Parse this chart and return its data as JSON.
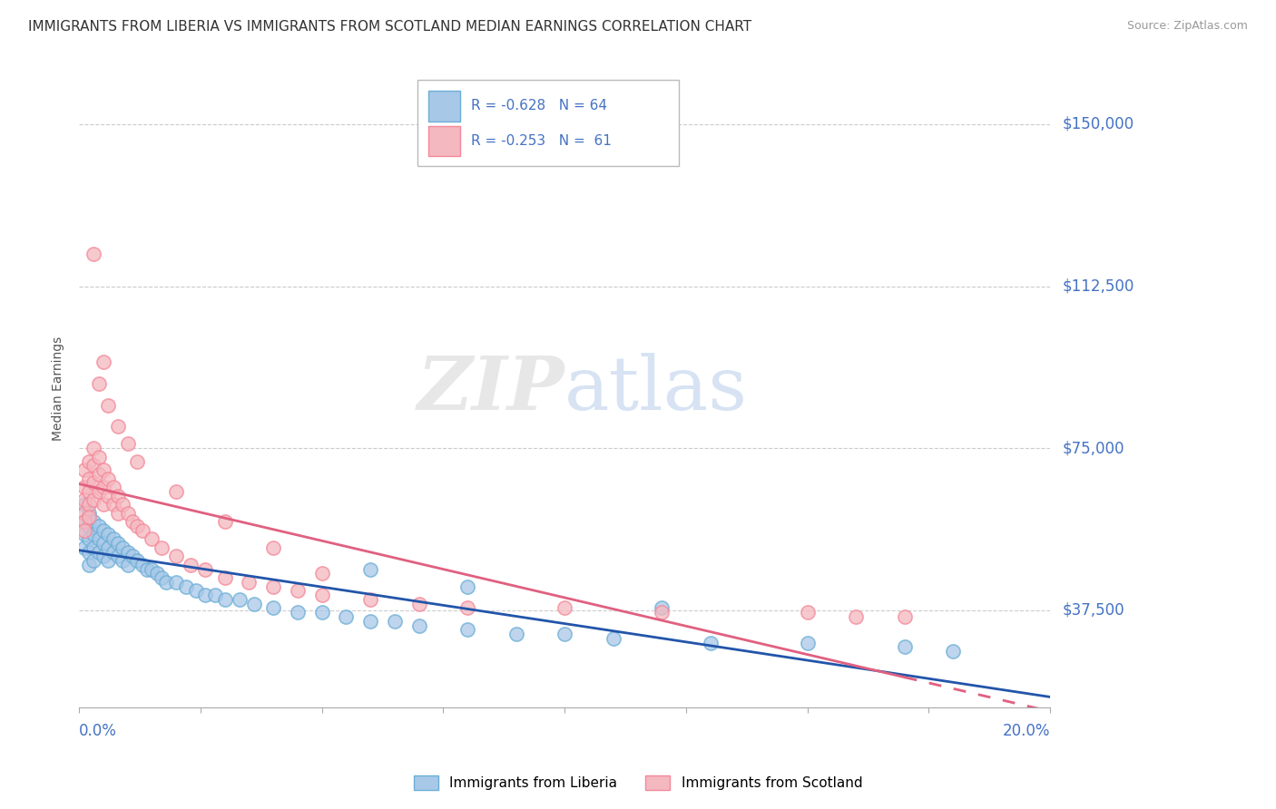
{
  "title": "IMMIGRANTS FROM LIBERIA VS IMMIGRANTS FROM SCOTLAND MEDIAN EARNINGS CORRELATION CHART",
  "source": "Source: ZipAtlas.com",
  "ylabel": "Median Earnings",
  "y_ticks": [
    37500,
    75000,
    112500,
    150000
  ],
  "y_tick_labels": [
    "$37,500",
    "$75,000",
    "$112,500",
    "$150,000"
  ],
  "x_min": 0.0,
  "x_max": 0.2,
  "y_min": 15000,
  "y_max": 162500,
  "liberia_color": "#a8c8e8",
  "liberia_edge_color": "#6baed6",
  "scotland_color": "#f4b8c0",
  "scotland_edge_color": "#f48898",
  "liberia_line_color": "#2255aa",
  "scotland_line_color": "#e06080",
  "axis_color": "#4472c4",
  "background_color": "#ffffff",
  "grid_color": "#cccccc",
  "label_liberia": "Immigrants from Liberia",
  "label_scotland": "Immigrants from Scotland",
  "liberia_x": [
    0.001,
    0.001,
    0.001,
    0.001,
    0.002,
    0.002,
    0.002,
    0.002,
    0.002,
    0.003,
    0.003,
    0.003,
    0.003,
    0.004,
    0.004,
    0.004,
    0.005,
    0.005,
    0.005,
    0.006,
    0.006,
    0.006,
    0.007,
    0.007,
    0.008,
    0.008,
    0.009,
    0.009,
    0.01,
    0.01,
    0.011,
    0.012,
    0.013,
    0.014,
    0.015,
    0.016,
    0.017,
    0.018,
    0.02,
    0.022,
    0.024,
    0.026,
    0.028,
    0.03,
    0.033,
    0.036,
    0.04,
    0.045,
    0.05,
    0.055,
    0.06,
    0.065,
    0.07,
    0.08,
    0.09,
    0.1,
    0.11,
    0.13,
    0.15,
    0.17,
    0.06,
    0.08,
    0.12,
    0.18
  ],
  "liberia_y": [
    62000,
    58000,
    55000,
    52000,
    60000,
    57000,
    54000,
    51000,
    48000,
    58000,
    55000,
    52000,
    49000,
    57000,
    54000,
    51000,
    56000,
    53000,
    50000,
    55000,
    52000,
    49000,
    54000,
    51000,
    53000,
    50000,
    52000,
    49000,
    51000,
    48000,
    50000,
    49000,
    48000,
    47000,
    47000,
    46000,
    45000,
    44000,
    44000,
    43000,
    42000,
    41000,
    41000,
    40000,
    40000,
    39000,
    38000,
    37000,
    37000,
    36000,
    35000,
    35000,
    34000,
    33000,
    32000,
    32000,
    31000,
    30000,
    30000,
    29000,
    47000,
    43000,
    38000,
    28000
  ],
  "scotland_x": [
    0.001,
    0.001,
    0.001,
    0.001,
    0.001,
    0.001,
    0.002,
    0.002,
    0.002,
    0.002,
    0.002,
    0.003,
    0.003,
    0.003,
    0.003,
    0.004,
    0.004,
    0.004,
    0.005,
    0.005,
    0.005,
    0.006,
    0.006,
    0.007,
    0.007,
    0.008,
    0.008,
    0.009,
    0.01,
    0.011,
    0.012,
    0.013,
    0.015,
    0.017,
    0.02,
    0.023,
    0.026,
    0.03,
    0.035,
    0.04,
    0.045,
    0.05,
    0.06,
    0.07,
    0.08,
    0.1,
    0.12,
    0.15,
    0.16,
    0.17,
    0.003,
    0.004,
    0.005,
    0.006,
    0.008,
    0.01,
    0.012,
    0.02,
    0.03,
    0.04,
    0.05
  ],
  "scotland_y": [
    70000,
    66000,
    63000,
    60000,
    58000,
    56000,
    72000,
    68000,
    65000,
    62000,
    59000,
    75000,
    71000,
    67000,
    63000,
    73000,
    69000,
    65000,
    70000,
    66000,
    62000,
    68000,
    64000,
    66000,
    62000,
    64000,
    60000,
    62000,
    60000,
    58000,
    57000,
    56000,
    54000,
    52000,
    50000,
    48000,
    47000,
    45000,
    44000,
    43000,
    42000,
    41000,
    40000,
    39000,
    38000,
    38000,
    37000,
    37000,
    36000,
    36000,
    120000,
    90000,
    95000,
    85000,
    80000,
    76000,
    72000,
    65000,
    58000,
    52000,
    46000
  ]
}
